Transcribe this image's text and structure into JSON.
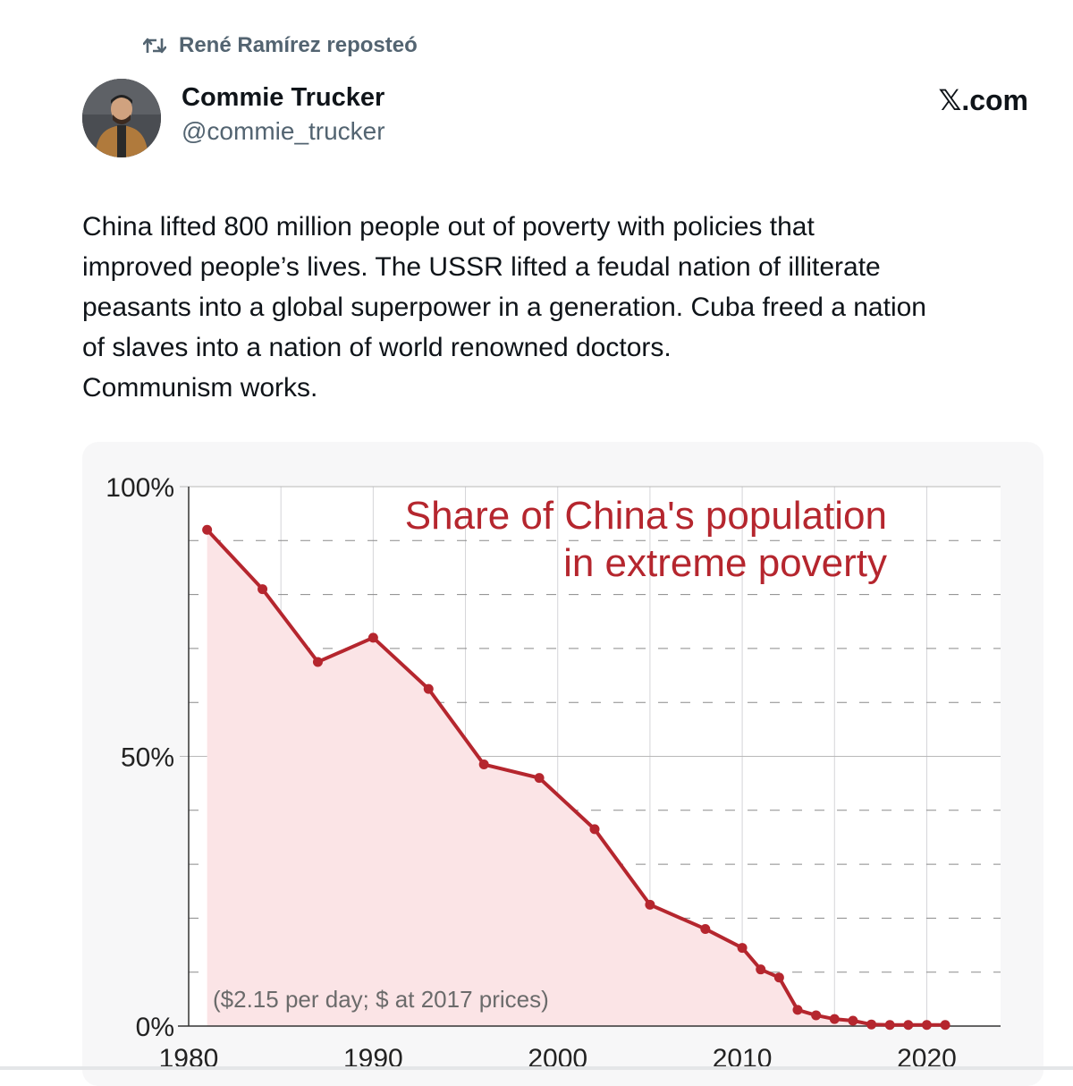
{
  "repost": {
    "icon": "repost-icon",
    "label": "René Ramírez reposteó"
  },
  "author": {
    "name": "Commie Trucker",
    "handle": "@commie_trucker",
    "avatar": "avatar"
  },
  "brand": {
    "label": "𝕏.com"
  },
  "tweet": {
    "lines": [
      "China lifted 800 million people out of poverty with policies that",
      "improved people’s lives. The USSR lifted a feudal nation of illiterate",
      "peasants into a global superpower in a generation. Cuba freed a nation",
      "of slaves into a nation of world renowned doctors.",
      "Communism works."
    ]
  },
  "chart_data": {
    "type": "area",
    "title": [
      "Share of China's population",
      "in extreme poverty"
    ],
    "annotation": "($2.15 per day; $ at 2017 prices)",
    "xlabel": "",
    "ylabel": "",
    "xlim": [
      1980,
      2024
    ],
    "ylim": [
      0,
      100
    ],
    "x_ticks": [
      1980,
      1990,
      2000,
      2010,
      2020
    ],
    "y_ticks": [
      0,
      50,
      100
    ],
    "y_tick_labels": [
      "0%",
      "50%",
      "100%"
    ],
    "grid": true,
    "colors": {
      "line": "#b5262e",
      "fill": "#fbe4e6",
      "title": "#b5262e"
    },
    "series": [
      {
        "name": "Share in extreme poverty",
        "x": [
          1981,
          1984,
          1987,
          1990,
          1993,
          1996,
          1999,
          2002,
          2005,
          2008,
          2010,
          2011,
          2012,
          2013,
          2014,
          2015,
          2016,
          2017,
          2018,
          2019,
          2020,
          2021
        ],
        "values": [
          92,
          81,
          67.5,
          72,
          62.5,
          48.5,
          46,
          36.5,
          22.5,
          18,
          14.5,
          10.5,
          9,
          3,
          2,
          1.3,
          1,
          0.3,
          0.2,
          0.2,
          0.2,
          0.2
        ]
      }
    ]
  }
}
